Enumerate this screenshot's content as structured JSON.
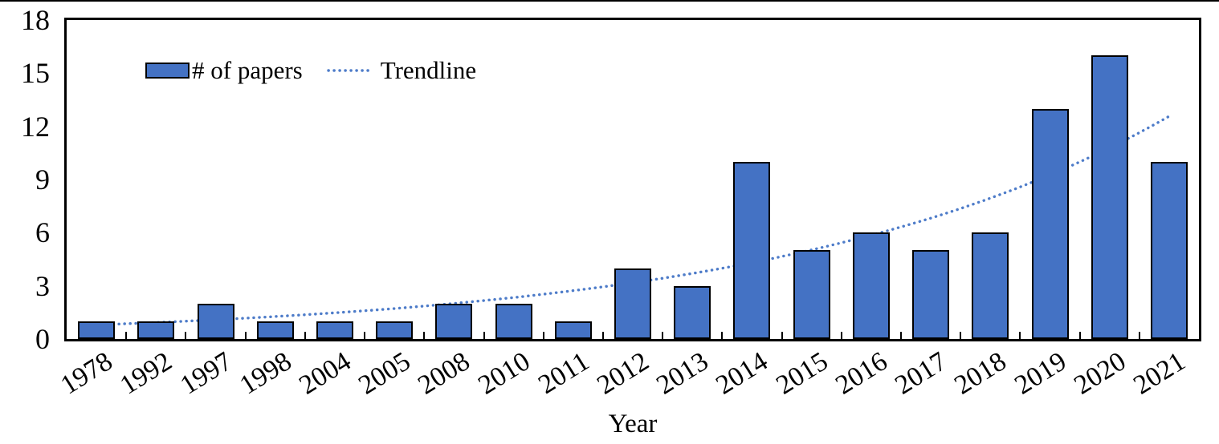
{
  "chart_data": {
    "type": "bar",
    "title": "",
    "xlabel": "Year",
    "ylabel": "",
    "ylim": [
      0,
      18
    ],
    "yticks": [
      0,
      3,
      6,
      9,
      12,
      15,
      18
    ],
    "categories": [
      "1978",
      "1992",
      "1997",
      "1998",
      "2004",
      "2005",
      "2008",
      "2010",
      "2011",
      "2012",
      "2013",
      "2014",
      "2015",
      "2016",
      "2017",
      "2018",
      "2019",
      "2020",
      "2021"
    ],
    "series": [
      {
        "name": "# of papers",
        "type": "bar",
        "values": [
          1,
          1,
          2,
          1,
          1,
          1,
          2,
          2,
          1,
          4,
          3,
          10,
          5,
          6,
          5,
          6,
          13,
          16,
          10
        ]
      },
      {
        "name": "Trendline",
        "type": "dotted-exponential-line",
        "values": [
          0.8,
          0.93,
          1.09,
          1.27,
          1.48,
          1.72,
          2.01,
          2.34,
          2.73,
          3.18,
          3.7,
          4.31,
          5.03,
          5.86,
          6.82,
          7.95,
          9.26,
          10.79,
          12.57
        ]
      }
    ],
    "legend": [
      "# of papers",
      "Trendline"
    ],
    "legend_position": "top-left-inside",
    "grid": false,
    "colors": {
      "bar_fill": "#4472C4",
      "bar_border": "#000000",
      "trendline": "#4E7CC9",
      "axis": "#000000",
      "text": "#000000"
    }
  }
}
